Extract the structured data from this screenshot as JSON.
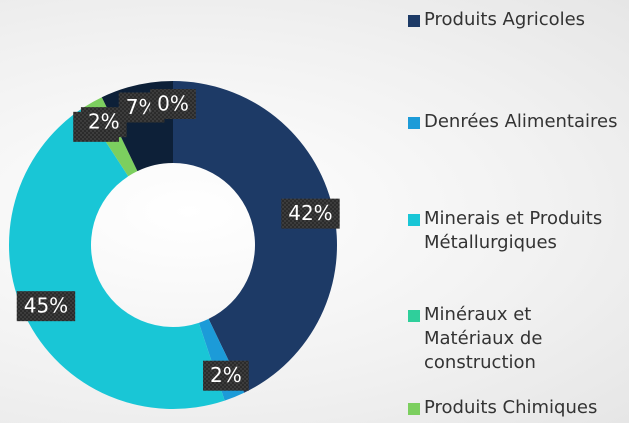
{
  "chart_data": {
    "type": "donut",
    "categories": [
      "Produits Agricoles",
      "Denrées Alimentaires",
      "Minerais et Produits Métallurgiques",
      "Minéraux et Matériaux de construction",
      "Produits Chimiques",
      null,
      null
    ],
    "values": [
      42,
      2,
      45,
      0,
      2,
      7,
      0
    ],
    "value_labels": [
      "42%",
      "2%",
      "45%",
      "0%",
      "2%",
      "7%",
      "0%"
    ],
    "colors": [
      "#1d3a66",
      "#1c9bd8",
      "#19c6d6",
      "#2fcf9b",
      "#7ccf5f",
      "#0d2038",
      "#12294a"
    ]
  }
}
